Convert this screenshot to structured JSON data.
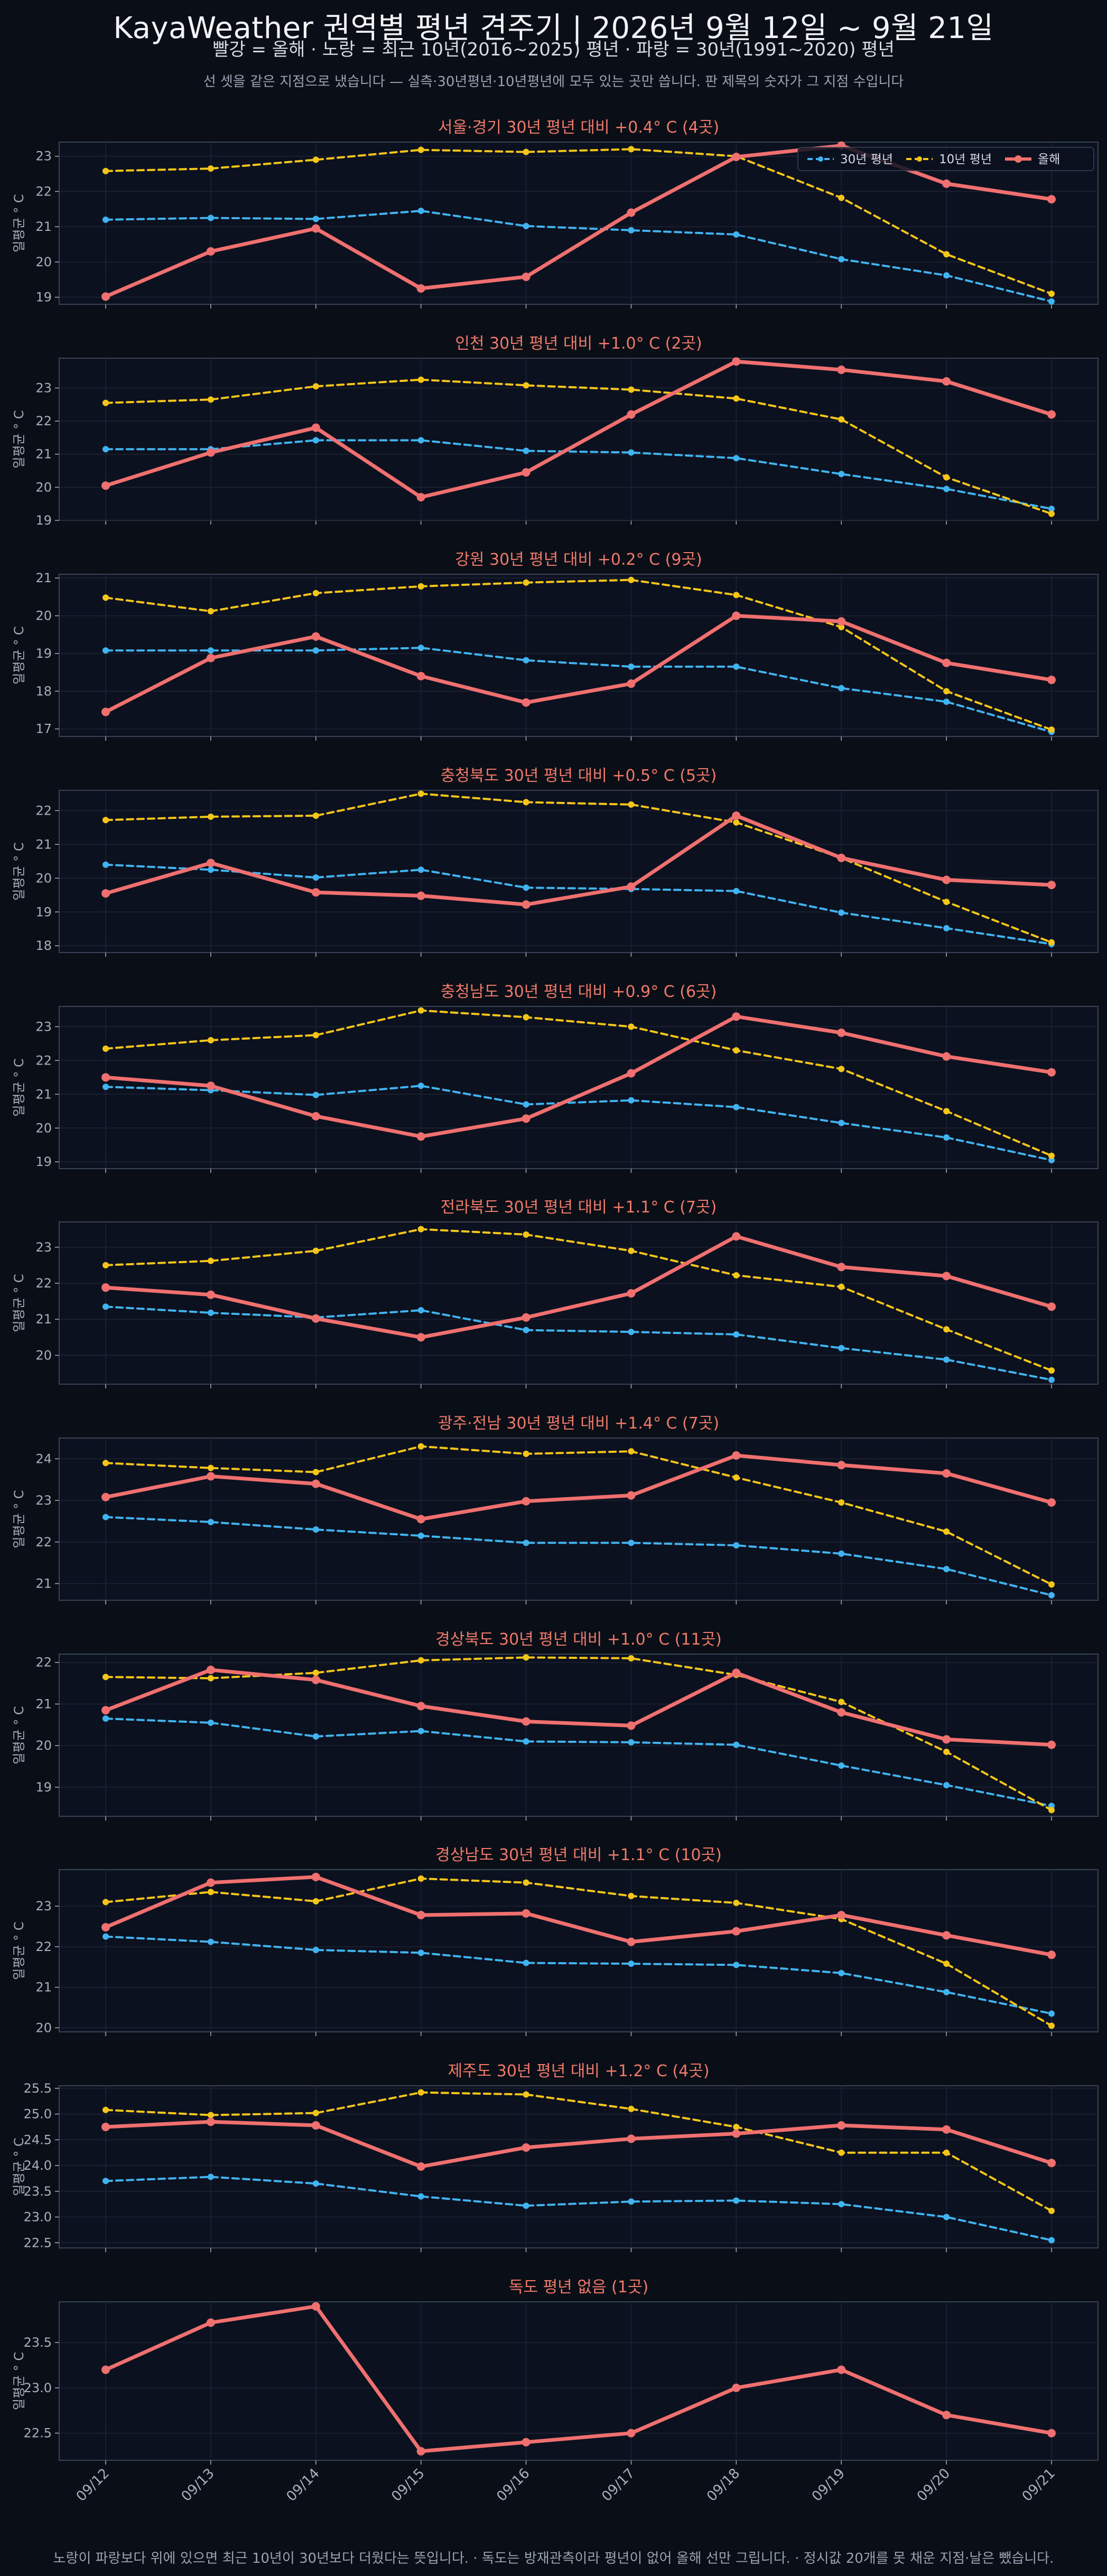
{
  "header": {
    "title": "KayaWeather 권역별 평년 견주기 | 2026년 9월 12일 ~ 9월 21일",
    "subtitle": "빨강 = 올해   ·   노랑 = 최근 10년(2016~2025) 평년   ·   파랑 = 30년(1991~2020) 평년",
    "note": "선 셋을 같은 지점으로 냈습니다 — 실측·30년평년·10년평년에 모두 있는 곳만 씁니다. 판 제목의 숫자가 그 지점 수입니다",
    "footnote": "노랑이 파랑보다 위에 있으면 최근 10년이 30년보다 더웠다는 뜻입니다.   ·   독도는 방재관측이라 평년이 없어 올해 선만 그립니다.   ·   정시값 20개를 못 채운 지점·날은 뺐습니다."
  },
  "colors": {
    "this_year": "#f07070",
    "normal_10y": "#f5c518",
    "normal_30y": "#3fb4f0",
    "panel_bg": "#0c1120",
    "panel_border": "#3a4356",
    "grid": "#1c2434",
    "tick_text": "#a8b0bd",
    "panel_title": "#f07a6a"
  },
  "chart_data": {
    "type": "line",
    "x": [
      "09/12",
      "09/13",
      "09/14",
      "09/15",
      "09/16",
      "09/17",
      "09/18",
      "09/19",
      "09/20",
      "09/21"
    ],
    "ylabel": "일평균 ° C",
    "legend": {
      "placement": "top-right",
      "entries": [
        "30년 평년",
        "10년 평년",
        "올해"
      ]
    },
    "grid": true,
    "panels": [
      {
        "title": "서울·경기   30년 평년 대비 +0.4° C  (4곳)",
        "ylim": [
          18.8,
          23.4
        ],
        "yticks": [
          19,
          20,
          21,
          22,
          23
        ],
        "series": [
          {
            "name": "30년 평년",
            "values": [
              21.2,
              21.25,
              21.22,
              21.45,
              21.02,
              20.9,
              20.78,
              20.08,
              19.62,
              18.88
            ]
          },
          {
            "name": "10년 평년",
            "values": [
              22.58,
              22.65,
              22.9,
              23.18,
              23.12,
              23.2,
              23.0,
              21.82,
              20.22,
              19.1
            ]
          },
          {
            "name": "올해",
            "values": [
              19.02,
              20.3,
              20.95,
              19.25,
              19.58,
              21.4,
              22.98,
              23.3,
              22.22,
              21.78
            ]
          }
        ]
      },
      {
        "title": "인천   30년 평년 대비 +1.0° C  (2곳)",
        "ylim": [
          19.0,
          23.9
        ],
        "yticks": [
          19,
          20,
          21,
          22,
          23
        ],
        "series": [
          {
            "name": "30년 평년",
            "values": [
              21.15,
              21.15,
              21.42,
              21.42,
              21.1,
              21.05,
              20.88,
              20.4,
              19.95,
              19.35
            ]
          },
          {
            "name": "10년 평년",
            "values": [
              22.55,
              22.65,
              23.05,
              23.25,
              23.08,
              22.95,
              22.68,
              22.05,
              20.3,
              19.2
            ]
          },
          {
            "name": "올해",
            "values": [
              20.05,
              21.05,
              21.8,
              19.7,
              20.45,
              22.2,
              23.8,
              23.55,
              23.2,
              22.2
            ]
          }
        ]
      },
      {
        "title": "강원   30년 평년 대비 +0.2° C  (9곳)",
        "ylim": [
          16.8,
          21.1
        ],
        "yticks": [
          17,
          18,
          19,
          20,
          21
        ],
        "series": [
          {
            "name": "30년 평년",
            "values": [
              19.08,
              19.08,
              19.08,
              19.15,
              18.82,
              18.65,
              18.65,
              18.08,
              17.72,
              16.92
            ]
          },
          {
            "name": "10년 평년",
            "values": [
              20.48,
              20.12,
              20.6,
              20.78,
              20.88,
              20.95,
              20.55,
              19.7,
              18.0,
              16.98
            ]
          },
          {
            "name": "올해",
            "values": [
              17.45,
              18.88,
              19.45,
              18.4,
              17.7,
              18.2,
              20.0,
              19.85,
              18.75,
              18.3
            ]
          }
        ]
      },
      {
        "title": "충청북도   30년 평년 대비 +0.5° C  (5곳)",
        "ylim": [
          17.8,
          22.6
        ],
        "yticks": [
          18,
          19,
          20,
          21,
          22
        ],
        "series": [
          {
            "name": "30년 평년",
            "values": [
              20.4,
              20.25,
              20.02,
              20.25,
              19.72,
              19.68,
              19.62,
              18.98,
              18.52,
              18.05
            ]
          },
          {
            "name": "10년 평년",
            "values": [
              21.72,
              21.82,
              21.85,
              22.5,
              22.25,
              22.18,
              21.65,
              20.6,
              19.3,
              18.1
            ]
          },
          {
            "name": "올해",
            "values": [
              19.55,
              20.45,
              19.58,
              19.48,
              19.22,
              19.75,
              21.85,
              20.6,
              19.95,
              19.8
            ]
          }
        ]
      },
      {
        "title": "충청남도   30년 평년 대비 +0.9° C  (6곳)",
        "ylim": [
          18.8,
          23.6
        ],
        "yticks": [
          19,
          20,
          21,
          22,
          23
        ],
        "series": [
          {
            "name": "30년 평년",
            "values": [
              21.22,
              21.12,
              20.98,
              21.25,
              20.7,
              20.82,
              20.62,
              20.15,
              19.72,
              19.05
            ]
          },
          {
            "name": "10년 평년",
            "values": [
              22.35,
              22.6,
              22.75,
              23.48,
              23.28,
              23.0,
              22.3,
              21.75,
              20.5,
              19.18
            ]
          },
          {
            "name": "올해",
            "values": [
              21.5,
              21.25,
              20.35,
              19.75,
              20.28,
              21.62,
              23.3,
              22.82,
              22.12,
              21.65
            ]
          }
        ]
      },
      {
        "title": "전라북도   30년 평년 대비 +1.1° C  (7곳)",
        "ylim": [
          19.2,
          23.7
        ],
        "yticks": [
          20,
          21,
          22,
          23
        ],
        "series": [
          {
            "name": "30년 평년",
            "values": [
              21.35,
              21.18,
              21.05,
              21.25,
              20.7,
              20.65,
              20.58,
              20.2,
              19.88,
              19.32
            ]
          },
          {
            "name": "10년 평년",
            "values": [
              22.5,
              22.62,
              22.9,
              23.5,
              23.35,
              22.9,
              22.22,
              21.9,
              20.72,
              19.58
            ]
          },
          {
            "name": "올해",
            "values": [
              21.88,
              21.68,
              21.02,
              20.5,
              21.05,
              21.72,
              23.3,
              22.45,
              22.2,
              21.35
            ]
          }
        ]
      },
      {
        "title": "광주·전남   30년 평년 대비 +1.4° C  (7곳)",
        "ylim": [
          20.6,
          24.5
        ],
        "yticks": [
          21,
          22,
          23,
          24
        ],
        "series": [
          {
            "name": "30년 평년",
            "values": [
              22.6,
              22.48,
              22.3,
              22.15,
              21.98,
              21.98,
              21.92,
              21.72,
              21.35,
              20.72
            ]
          },
          {
            "name": "10년 평년",
            "values": [
              23.9,
              23.78,
              23.68,
              24.3,
              24.12,
              24.18,
              23.55,
              22.95,
              22.25,
              20.98
            ]
          },
          {
            "name": "올해",
            "values": [
              23.08,
              23.58,
              23.4,
              22.55,
              22.98,
              23.12,
              24.08,
              23.85,
              23.65,
              22.95
            ]
          }
        ]
      },
      {
        "title": "경상북도   30년 평년 대비 +1.0° C  (11곳)",
        "ylim": [
          18.3,
          22.2
        ],
        "yticks": [
          19,
          20,
          21,
          22
        ],
        "series": [
          {
            "name": "30년 평년",
            "values": [
              20.65,
              20.55,
              20.22,
              20.35,
              20.1,
              20.08,
              20.02,
              19.52,
              19.05,
              18.55
            ]
          },
          {
            "name": "10년 평년",
            "values": [
              21.65,
              21.62,
              21.75,
              22.05,
              22.12,
              22.1,
              21.7,
              21.05,
              19.85,
              18.45
            ]
          },
          {
            "name": "올해",
            "values": [
              20.85,
              21.82,
              21.58,
              20.95,
              20.58,
              20.48,
              21.75,
              20.8,
              20.15,
              20.02
            ]
          }
        ]
      },
      {
        "title": "경상남도   30년 평년 대비 +1.1° C  (10곳)",
        "ylim": [
          19.9,
          23.9
        ],
        "yticks": [
          20,
          21,
          22,
          23
        ],
        "series": [
          {
            "name": "30년 평년",
            "values": [
              22.25,
              22.12,
              21.92,
              21.85,
              21.6,
              21.58,
              21.55,
              21.35,
              20.88,
              20.35
            ]
          },
          {
            "name": "10년 평년",
            "values": [
              23.1,
              23.35,
              23.12,
              23.68,
              23.58,
              23.25,
              23.08,
              22.68,
              21.58,
              20.05
            ]
          },
          {
            "name": "올해",
            "values": [
              22.48,
              23.58,
              23.72,
              22.78,
              22.82,
              22.12,
              22.38,
              22.78,
              22.28,
              21.8
            ]
          }
        ]
      },
      {
        "title": "제주도   30년 평년 대비 +1.2° C  (4곳)",
        "ylim": [
          22.4,
          25.55
        ],
        "yticks": [
          22.5,
          23.0,
          23.5,
          24.0,
          24.5,
          25.0,
          25.5
        ],
        "ytick_labels": [
          "22.5",
          "23.0",
          "23.5",
          "24.0",
          "24.5",
          "25.0",
          "25.5"
        ],
        "series": [
          {
            "name": "30년 평년",
            "values": [
              23.7,
              23.78,
              23.65,
              23.4,
              23.22,
              23.3,
              23.32,
              23.25,
              23.0,
              22.55
            ]
          },
          {
            "name": "10년 평년",
            "values": [
              25.08,
              24.98,
              25.02,
              25.42,
              25.38,
              25.1,
              24.75,
              24.25,
              24.25,
              23.12
            ]
          },
          {
            "name": "올해",
            "values": [
              24.75,
              24.85,
              24.78,
              23.98,
              24.35,
              24.52,
              24.62,
              24.78,
              24.7,
              24.05
            ]
          }
        ]
      },
      {
        "title": "독도   평년 없음  (1곳)",
        "ylim": [
          22.2,
          23.95
        ],
        "yticks": [
          22.5,
          23.0,
          23.5
        ],
        "ytick_labels": [
          "22.5",
          "23.0",
          "23.5"
        ],
        "series": [
          {
            "name": "올해",
            "values": [
              23.2,
              23.72,
              23.9,
              22.3,
              22.4,
              22.5,
              23.0,
              23.2,
              22.7,
              22.5
            ]
          }
        ]
      }
    ]
  }
}
